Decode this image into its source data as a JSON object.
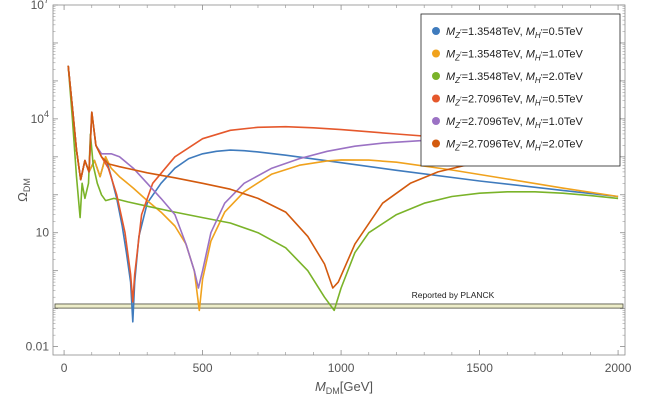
{
  "chart_data": {
    "type": "line",
    "title": "",
    "xlabel": {
      "main": "M",
      "sub": "DM",
      "tail": "[GeV]"
    },
    "ylabel": {
      "main": "Ω",
      "sub": "DM"
    },
    "xlim": [
      -40,
      2025
    ],
    "ylim": [
      0.006,
      10000000
    ],
    "yscale": "log",
    "xticks": [
      {
        "value": 0,
        "label": "0"
      },
      {
        "value": 500,
        "label": "500"
      },
      {
        "value": 1000,
        "label": "1000"
      },
      {
        "value": 1500,
        "label": "1500"
      },
      {
        "value": 2000,
        "label": "2000"
      }
    ],
    "yticks": [
      {
        "value": 0.01,
        "base": "0.01",
        "exp": ""
      },
      {
        "value": 10,
        "base": "10",
        "exp": ""
      },
      {
        "value": 10000,
        "base": "10",
        "exp": "4"
      },
      {
        "value": 10000000,
        "base": "10",
        "exp": "7"
      }
    ],
    "legend_position": "top-right",
    "series": [
      {
        "name": "M_Z'=1.3548TeV, M_H'=0.5TeV",
        "legend": {
          "mz": "1.3548TeV",
          "mh": "0.5TeV"
        },
        "color": "#3f7bbd",
        "points": [
          [
            15,
            250000
          ],
          [
            30,
            20000
          ],
          [
            45,
            1500
          ],
          [
            60,
            250
          ],
          [
            75,
            800
          ],
          [
            90,
            400
          ],
          [
            110,
            800
          ],
          [
            130,
            300
          ],
          [
            150,
            1000
          ],
          [
            170,
            300
          ],
          [
            190,
            80
          ],
          [
            210,
            15
          ],
          [
            225,
            3
          ],
          [
            240,
            0.5
          ],
          [
            248,
            0.045
          ],
          [
            255,
            0.5
          ],
          [
            270,
            8
          ],
          [
            300,
            60
          ],
          [
            350,
            200
          ],
          [
            400,
            500
          ],
          [
            450,
            900
          ],
          [
            500,
            1200
          ],
          [
            550,
            1400
          ],
          [
            600,
            1500
          ],
          [
            650,
            1450
          ],
          [
            700,
            1350
          ],
          [
            800,
            1100
          ],
          [
            1000,
            700
          ],
          [
            1200,
            440
          ],
          [
            1500,
            230
          ],
          [
            1800,
            130
          ],
          [
            2000,
            90
          ]
        ]
      },
      {
        "name": "M_Z'=1.3548TeV, M_H'=1.0TeV",
        "legend": {
          "mz": "1.3548TeV",
          "mh": "1.0TeV"
        },
        "color": "#f0a21d",
        "points": [
          [
            15,
            250000
          ],
          [
            30,
            20000
          ],
          [
            45,
            1500
          ],
          [
            60,
            250
          ],
          [
            75,
            800
          ],
          [
            90,
            400
          ],
          [
            110,
            800
          ],
          [
            130,
            300
          ],
          [
            150,
            1000
          ],
          [
            170,
            500
          ],
          [
            200,
            300
          ],
          [
            250,
            150
          ],
          [
            300,
            70
          ],
          [
            350,
            35
          ],
          [
            400,
            15
          ],
          [
            440,
            5
          ],
          [
            470,
            1
          ],
          [
            488,
            0.09
          ],
          [
            500,
            0.6
          ],
          [
            530,
            6
          ],
          [
            580,
            35
          ],
          [
            650,
            120
          ],
          [
            750,
            350
          ],
          [
            850,
            600
          ],
          [
            950,
            780
          ],
          [
            1000,
            830
          ],
          [
            1100,
            820
          ],
          [
            1200,
            720
          ],
          [
            1400,
            450
          ],
          [
            1600,
            260
          ],
          [
            1800,
            150
          ],
          [
            2000,
            90
          ]
        ]
      },
      {
        "name": "M_Z'=1.3548TeV, M_H'=2.0TeV",
        "legend": {
          "mz": "1.3548TeV",
          "mh": "2.0TeV"
        },
        "color": "#7ab329",
        "points": [
          [
            15,
            250000
          ],
          [
            30,
            10000
          ],
          [
            45,
            300
          ],
          [
            58,
            25
          ],
          [
            65,
            200
          ],
          [
            75,
            80
          ],
          [
            88,
            200
          ],
          [
            95,
            4000
          ],
          [
            105,
            600
          ],
          [
            120,
            200
          ],
          [
            135,
            100
          ],
          [
            150,
            70
          ],
          [
            180,
            80
          ],
          [
            230,
            65
          ],
          [
            300,
            50
          ],
          [
            400,
            35
          ],
          [
            500,
            25
          ],
          [
            600,
            18
          ],
          [
            700,
            10
          ],
          [
            800,
            4
          ],
          [
            880,
            1
          ],
          [
            940,
            0.2
          ],
          [
            975,
            0.09
          ],
          [
            1000,
            0.35
          ],
          [
            1050,
            3
          ],
          [
            1100,
            10
          ],
          [
            1200,
            30
          ],
          [
            1300,
            60
          ],
          [
            1400,
            90
          ],
          [
            1500,
            110
          ],
          [
            1600,
            120
          ],
          [
            1700,
            120
          ],
          [
            1800,
            110
          ],
          [
            1900,
            95
          ],
          [
            2000,
            80
          ]
        ]
      },
      {
        "name": "M_Z'=2.7096TeV, M_H'=0.5TeV",
        "legend": {
          "mz": "2.7096TeV",
          "mh": "0.5TeV"
        },
        "color": "#e5582c",
        "points": [
          [
            15,
            250000
          ],
          [
            30,
            20000
          ],
          [
            45,
            1500
          ],
          [
            60,
            250
          ],
          [
            75,
            800
          ],
          [
            90,
            400
          ],
          [
            100,
            15000
          ],
          [
            115,
            2000
          ],
          [
            135,
            1000
          ],
          [
            160,
            500
          ],
          [
            190,
            100
          ],
          [
            220,
            10
          ],
          [
            240,
            0.8
          ],
          [
            248,
            0.15
          ],
          [
            255,
            0.8
          ],
          [
            280,
            30
          ],
          [
            320,
            200
          ],
          [
            400,
            1000
          ],
          [
            500,
            3000
          ],
          [
            600,
            5000
          ],
          [
            700,
            6000
          ],
          [
            800,
            6200
          ],
          [
            900,
            5800
          ],
          [
            1000,
            5200
          ],
          [
            1200,
            4000
          ],
          [
            1400,
            3100
          ],
          [
            1600,
            2500
          ],
          [
            1800,
            2000
          ],
          [
            2000,
            1700
          ]
        ]
      },
      {
        "name": "M_Z'=2.7096TeV, M_H'=1.0TeV",
        "legend": {
          "mz": "2.7096TeV",
          "mh": "1.0TeV"
        },
        "color": "#9b72c4",
        "points": [
          [
            15,
            250000
          ],
          [
            30,
            20000
          ],
          [
            45,
            1500
          ],
          [
            60,
            250
          ],
          [
            75,
            800
          ],
          [
            90,
            400
          ],
          [
            100,
            15000
          ],
          [
            115,
            2000
          ],
          [
            135,
            1200
          ],
          [
            170,
            1200
          ],
          [
            200,
            1000
          ],
          [
            250,
            500
          ],
          [
            300,
            200
          ],
          [
            350,
            80
          ],
          [
            400,
            30
          ],
          [
            440,
            5
          ],
          [
            470,
            1
          ],
          [
            485,
            0.35
          ],
          [
            500,
            1
          ],
          [
            530,
            10
          ],
          [
            580,
            60
          ],
          [
            650,
            200
          ],
          [
            750,
            500
          ],
          [
            850,
            900
          ],
          [
            950,
            1400
          ],
          [
            1050,
            1900
          ],
          [
            1150,
            2300
          ],
          [
            1300,
            2700
          ],
          [
            1400,
            2800
          ],
          [
            1500,
            2700
          ],
          [
            1600,
            2500
          ],
          [
            1800,
            2000
          ],
          [
            2000,
            1600
          ]
        ]
      },
      {
        "name": "M_Z'=2.7096TeV, M_H'=2.0TeV",
        "legend": {
          "mz": "2.7096TeV",
          "mh": "2.0TeV"
        },
        "color": "#d35a0e",
        "points": [
          [
            15,
            250000
          ],
          [
            30,
            20000
          ],
          [
            45,
            1500
          ],
          [
            60,
            250
          ],
          [
            75,
            800
          ],
          [
            90,
            400
          ],
          [
            100,
            15000
          ],
          [
            115,
            2000
          ],
          [
            135,
            1000
          ],
          [
            160,
            650
          ],
          [
            200,
            550
          ],
          [
            300,
            380
          ],
          [
            400,
            280
          ],
          [
            500,
            200
          ],
          [
            600,
            140
          ],
          [
            700,
            80
          ],
          [
            800,
            35
          ],
          [
            880,
            8
          ],
          [
            940,
            1.5
          ],
          [
            970,
            0.35
          ],
          [
            990,
            0.5
          ],
          [
            1050,
            5
          ],
          [
            1150,
            60
          ],
          [
            1250,
            200
          ],
          [
            1350,
            400
          ],
          [
            1450,
            600
          ],
          [
            1550,
            800
          ],
          [
            1650,
            1000
          ],
          [
            1750,
            1100
          ],
          [
            1850,
            1200
          ],
          [
            1950,
            1250
          ],
          [
            2000,
            1250
          ]
        ]
      }
    ],
    "annotations": [
      {
        "text": "Reported by PLANCK",
        "x": 1200,
        "y": 0.12,
        "band": [
          0.1131,
          0.1211
        ]
      }
    ]
  }
}
